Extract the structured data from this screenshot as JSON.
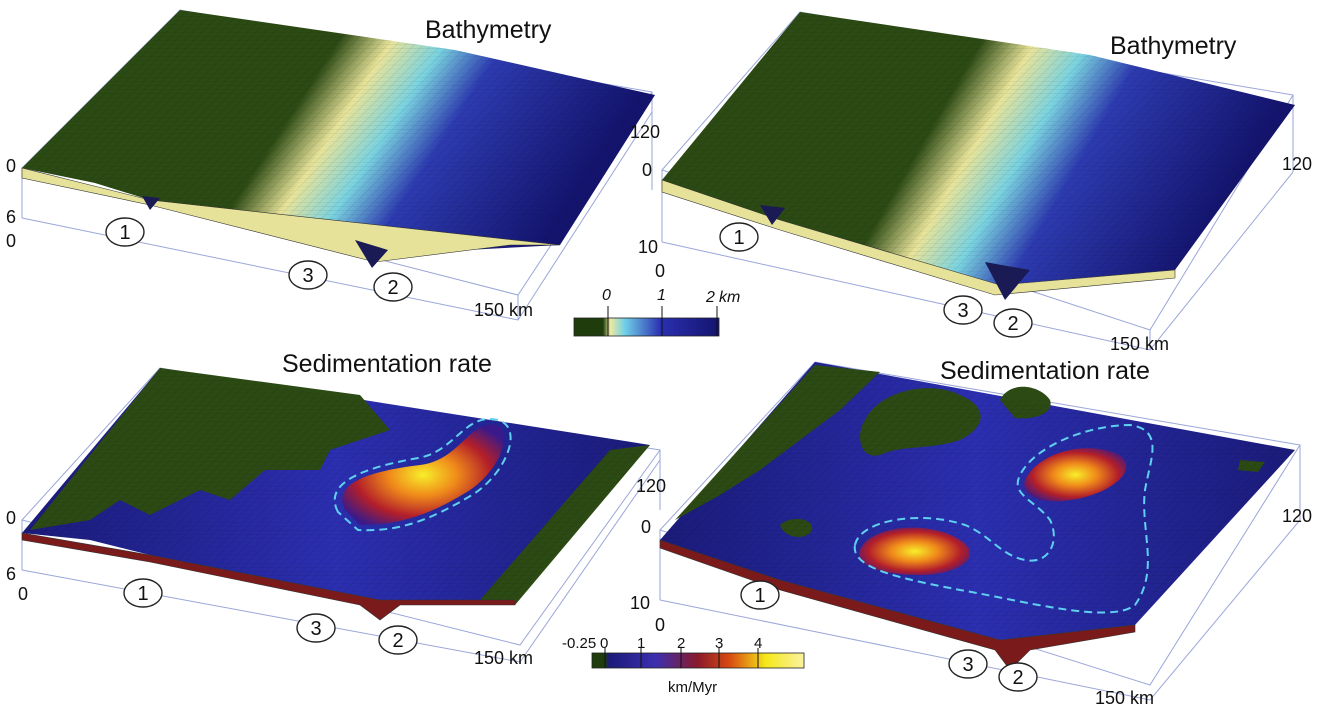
{
  "panels": [
    {
      "title": "Bathymetry",
      "axis": {
        "z_top": "0",
        "z_bottom": "6",
        "x_origin": "0",
        "y_far": "120",
        "x_far": "150 km"
      },
      "markers": [
        "1",
        "3",
        "2"
      ]
    },
    {
      "title": "Bathymetry",
      "axis": {
        "z_top": "0",
        "z_bottom": "10",
        "x_origin": "0",
        "y_far": "120",
        "x_far": "150 km"
      },
      "markers": [
        "1",
        "3",
        "2"
      ]
    },
    {
      "title": "Sedimentation rate",
      "axis": {
        "z_top": "0",
        "z_bottom": "6",
        "x_origin": "0",
        "y_far": "120",
        "x_far": "150 km"
      },
      "markers": [
        "1",
        "3",
        "2"
      ]
    },
    {
      "title": "Sedimentation rate",
      "axis": {
        "z_top": "0",
        "z_bottom": "10",
        "x_origin": "0",
        "y_far": "120",
        "x_far": "150 km"
      },
      "markers": [
        "1",
        "3",
        "2"
      ]
    }
  ],
  "colorbar_bathymetry": {
    "ticks": [
      "0",
      "1",
      "2"
    ],
    "unit": "km",
    "colors": [
      "#1f3d0c",
      "#eee9a0",
      "#6fd0e8",
      "#2a2fb0",
      "#14146e"
    ]
  },
  "colorbar_sedimentation": {
    "ticks": [
      "-0.25",
      "0",
      "1",
      "2",
      "3",
      "4"
    ],
    "unit": "km/Myr",
    "colors": [
      "#1f3d0c",
      "#1b1b7a",
      "#3b2fb0",
      "#8b1a2a",
      "#d84a10",
      "#f5e81a",
      "#fbf2a0"
    ]
  },
  "colors": {
    "land": "#2c4a14",
    "shelf": "#e6e29a",
    "deep": "#16167a",
    "contour": "#5fd0f0"
  }
}
